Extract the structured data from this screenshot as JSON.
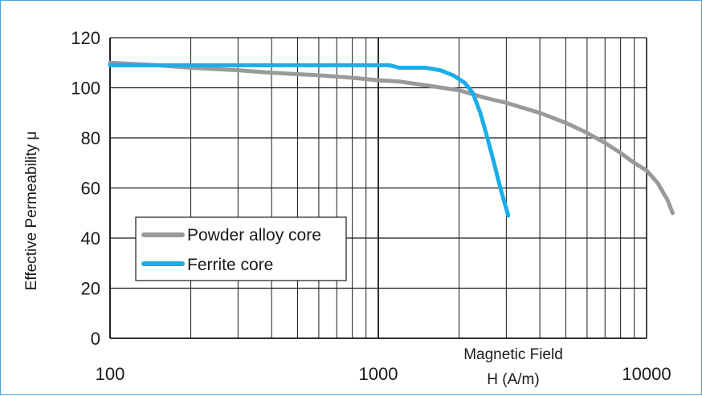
{
  "chart_data": {
    "type": "line",
    "title": "",
    "xlabel_line1": "Magnetic Field",
    "xlabel_line2": "H (A/m)",
    "ylabel": "Effective Permeability μ",
    "xscale": "log",
    "xlim": [
      100,
      10000
    ],
    "ylim": [
      0,
      120
    ],
    "grid": true,
    "legend_position": "middle-left",
    "x_ticks": [
      {
        "value": 100,
        "label": "100"
      },
      {
        "value": 1000,
        "label": "1000"
      },
      {
        "value": 10000,
        "label": "10000"
      }
    ],
    "y_ticks": [
      {
        "value": 0,
        "label": "0"
      },
      {
        "value": 20,
        "label": "20"
      },
      {
        "value": 40,
        "label": "40"
      },
      {
        "value": 60,
        "label": "60"
      },
      {
        "value": 80,
        "label": "80"
      },
      {
        "value": 100,
        "label": "100"
      },
      {
        "value": 120,
        "label": "120"
      }
    ],
    "series": [
      {
        "name": "Powder alloy core",
        "color": "#9a9a9a",
        "points": [
          [
            100,
            110
          ],
          [
            150,
            109
          ],
          [
            200,
            108
          ],
          [
            300,
            107
          ],
          [
            400,
            106
          ],
          [
            600,
            105
          ],
          [
            800,
            104
          ],
          [
            1000,
            103
          ],
          [
            1200,
            102.5
          ],
          [
            1500,
            101
          ],
          [
            2000,
            99
          ],
          [
            2500,
            96
          ],
          [
            3000,
            94
          ],
          [
            4000,
            90
          ],
          [
            5000,
            86
          ],
          [
            6000,
            82
          ],
          [
            7000,
            78
          ],
          [
            8000,
            74
          ],
          [
            9000,
            70
          ],
          [
            10000,
            67
          ],
          [
            11000,
            62
          ],
          [
            12000,
            55
          ],
          [
            12500,
            50
          ]
        ]
      },
      {
        "name": "Ferrite core",
        "color": "#1aaee8",
        "points": [
          [
            100,
            109
          ],
          [
            200,
            109
          ],
          [
            500,
            109
          ],
          [
            1000,
            109
          ],
          [
            1100,
            109
          ],
          [
            1200,
            108
          ],
          [
            1500,
            108
          ],
          [
            1700,
            107
          ],
          [
            1900,
            105
          ],
          [
            2100,
            102
          ],
          [
            2250,
            98
          ],
          [
            2400,
            90
          ],
          [
            2550,
            80
          ],
          [
            2700,
            70
          ],
          [
            2850,
            60
          ],
          [
            3050,
            49
          ]
        ]
      }
    ]
  }
}
